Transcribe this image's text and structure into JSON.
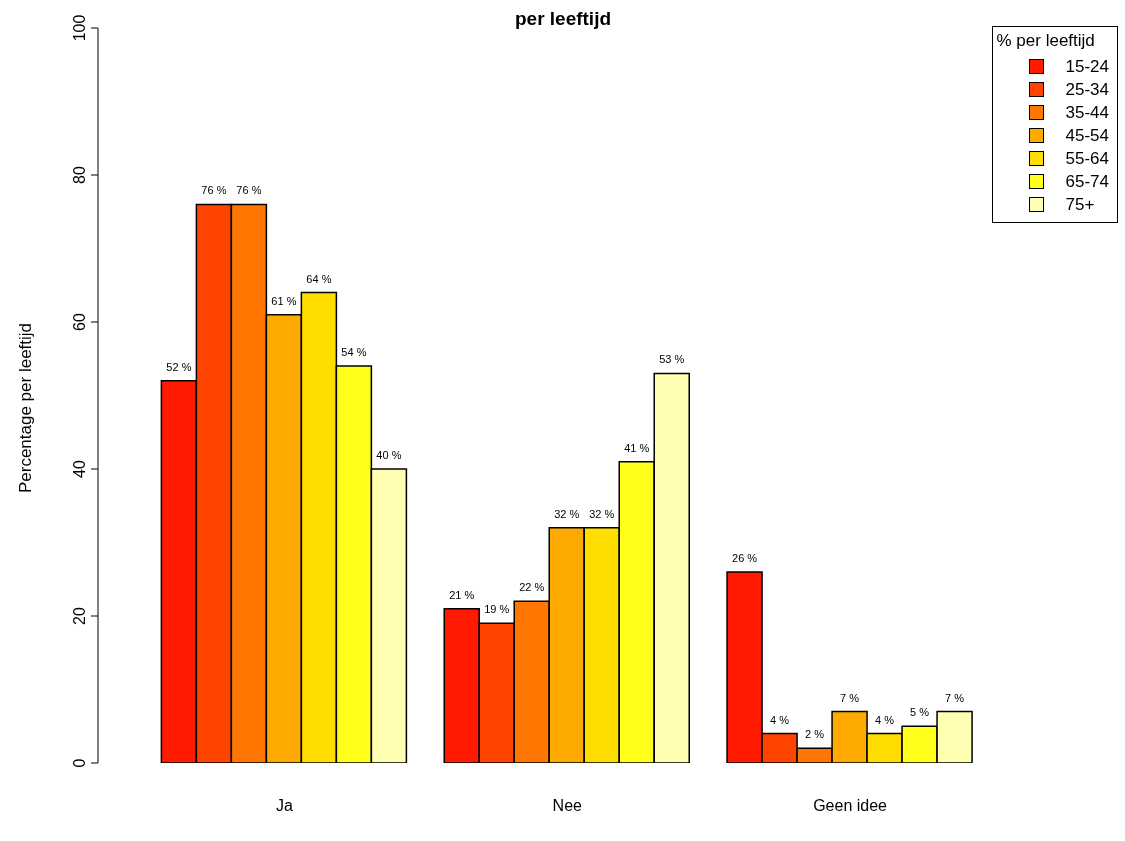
{
  "chart_data": {
    "type": "bar",
    "title": "per leeftijd",
    "ylabel": "Percentage per leeftijd",
    "legend_title": "% per leeftijd",
    "categories": [
      "Ja",
      "Nee",
      "Geen idee"
    ],
    "series": [
      {
        "name": "15-24",
        "color": "#ff1a00",
        "values": [
          52,
          21,
          26
        ],
        "value_labels": [
          "52 %",
          "21 %",
          "26 %"
        ]
      },
      {
        "name": "25-34",
        "color": "#ff4400",
        "values": [
          76,
          19,
          4
        ],
        "value_labels": [
          "76 %",
          "19 %",
          "4 %"
        ]
      },
      {
        "name": "35-44",
        "color": "#ff7700",
        "values": [
          76,
          22,
          2
        ],
        "value_labels": [
          "76 %",
          "22 %",
          "2 %"
        ]
      },
      {
        "name": "45-54",
        "color": "#ffaa00",
        "values": [
          61,
          32,
          7
        ],
        "value_labels": [
          "61 %",
          "32 %",
          "7 %"
        ]
      },
      {
        "name": "55-64",
        "color": "#ffdd00",
        "values": [
          64,
          32,
          4
        ],
        "value_labels": [
          "64 %",
          "32 %",
          "4 %"
        ]
      },
      {
        "name": "65-74",
        "color": "#ffff1a",
        "values": [
          54,
          41,
          5
        ],
        "value_labels": [
          "54 %",
          "41 %",
          "5 %"
        ]
      },
      {
        "name": "75+",
        "color": "#ffffb3",
        "values": [
          40,
          53,
          7
        ],
        "value_labels": [
          "40 %",
          "53 %",
          "7 %"
        ]
      }
    ],
    "ylim": [
      0,
      100
    ],
    "yticks": [
      0,
      20,
      40,
      60,
      80,
      100
    ],
    "grid": false,
    "legend": "top right"
  }
}
